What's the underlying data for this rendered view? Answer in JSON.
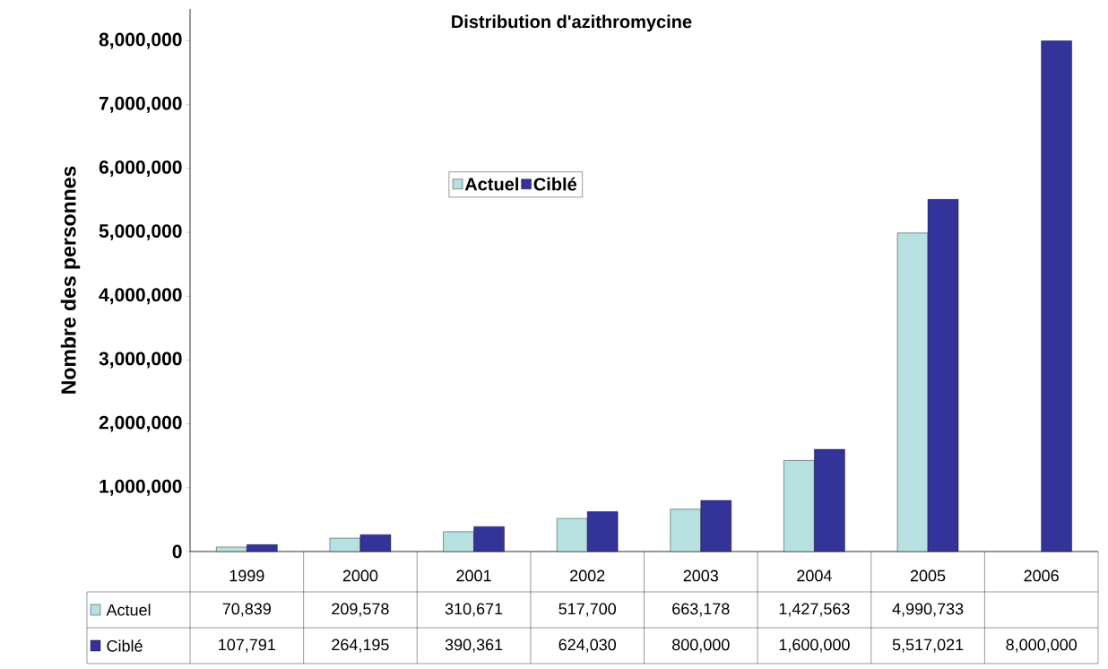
{
  "chart_data": {
    "type": "bar",
    "title": "Distribution d'azithromycine",
    "ylabel": "Nombre des personnes",
    "categories": [
      "1999",
      "2000",
      "2001",
      "2002",
      "2003",
      "2004",
      "2005",
      "2006"
    ],
    "series": [
      {
        "name": "Actuel",
        "color": "#b7e0e0",
        "values": [
          70839,
          209578,
          310671,
          517700,
          663178,
          1427563,
          4990733,
          null
        ],
        "value_labels": [
          "70,839",
          "209,578",
          "310,671",
          "517,700",
          "663,178",
          "1,427,563",
          "4,990,733",
          null
        ]
      },
      {
        "name": "Ciblé",
        "color": "#333399",
        "values": [
          107791,
          264195,
          390361,
          624030,
          800000,
          1600000,
          5517021,
          8000000
        ],
        "value_labels": [
          "107,791",
          "264,195",
          "390,361",
          "624,030",
          "800,000",
          "1,600,000",
          "5,517,021",
          "8,000,000"
        ]
      }
    ],
    "ylim": [
      0,
      8500000
    ],
    "yticks": [
      {
        "value": 0,
        "label": "0"
      },
      {
        "value": 1000000,
        "label": "1,000,000"
      },
      {
        "value": 2000000,
        "label": "2,000,000"
      },
      {
        "value": 3000000,
        "label": "3,000,000"
      },
      {
        "value": 4000000,
        "label": "4,000,000"
      },
      {
        "value": 5000000,
        "label": "5,000,000"
      },
      {
        "value": 6000000,
        "label": "6,000,000"
      },
      {
        "value": 7000000,
        "label": "7,000,000"
      },
      {
        "value": 8000000,
        "label": "8,000,000"
      }
    ],
    "legend": "top"
  }
}
